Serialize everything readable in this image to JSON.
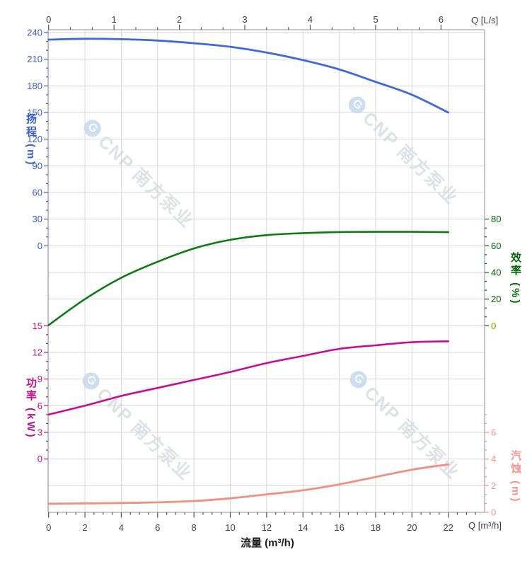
{
  "watermark": {
    "logo_letter": "G",
    "text": "CNP 南方泵业"
  },
  "axes": {
    "flow_top": {
      "label": "Q [L/s]",
      "ticks": [
        "0",
        "1",
        "2",
        "3",
        "4",
        "5",
        "6"
      ],
      "color": "#3f3f3f"
    },
    "flow_bottom": {
      "label": "Q [m³/h]",
      "axis_title": "流量 (m³/h)",
      "ticks": [
        "0",
        "2",
        "4",
        "6",
        "8",
        "10",
        "12",
        "14",
        "16",
        "18",
        "20",
        "22"
      ],
      "color": "#3f3f3f"
    },
    "head": {
      "title": "扬程 (m)",
      "ticks": [
        "240",
        "210",
        "180",
        "150",
        "120",
        "90",
        "60",
        "30",
        "0"
      ],
      "label_color": "#3a5cd6"
    },
    "power": {
      "title": "功率 (kW)",
      "ticks": [
        "15",
        "12",
        "9",
        "6",
        "3",
        "0"
      ],
      "label_color": "#c5108c"
    },
    "eff": {
      "title": "效率 (%)",
      "ticks": [
        "80",
        "60",
        "40",
        "20",
        "0"
      ],
      "label_color": "#06660a",
      "zero_highlight": {
        "outline": "#c8d84a",
        "fill": "#17617d"
      }
    },
    "npsh": {
      "title": "汽蚀 (m)",
      "ticks": [
        "6",
        "4",
        "2",
        "0"
      ],
      "label_color": "#f4958b"
    }
  },
  "chart_data": {
    "type": "line",
    "title": "",
    "x_label_bottom": "流量 (m³/h)",
    "x_label_top": "Q [L/s]",
    "x_range_m3h": [
      0,
      24
    ],
    "x_range_ls": [
      0,
      6.65
    ],
    "grid": true,
    "x": [
      0,
      2,
      4,
      6,
      8,
      10,
      12,
      14,
      16,
      18,
      20,
      22
    ],
    "series": [
      {
        "name": "扬程",
        "unit": "m",
        "axis_range": [
          0,
          240
        ],
        "color": "#4268dd",
        "values": [
          232,
          233,
          232.5,
          231,
          228,
          224,
          217.5,
          209,
          198.5,
          184.5,
          170,
          150
        ]
      },
      {
        "name": "效率",
        "unit": "%",
        "axis_range": [
          0,
          80
        ],
        "color": "#0d7a12",
        "values": [
          0.5,
          20,
          36,
          48,
          58,
          64.5,
          68,
          69.5,
          70.3,
          70.5,
          70.5,
          70.2
        ]
      },
      {
        "name": "功率",
        "unit": "kW",
        "axis_range": [
          0,
          15
        ],
        "color": "#ca0d90",
        "values": [
          5.0,
          6.0,
          7.1,
          8.0,
          8.9,
          9.8,
          10.8,
          11.6,
          12.4,
          12.8,
          13.15,
          13.25
        ]
      },
      {
        "name": "汽蚀",
        "unit": "m",
        "axis_range": [
          0,
          6
        ],
        "color": "#f28f80",
        "values": [
          0.65,
          0.67,
          0.7,
          0.75,
          0.85,
          1.05,
          1.35,
          1.65,
          2.1,
          2.65,
          3.2,
          3.6
        ]
      }
    ]
  }
}
